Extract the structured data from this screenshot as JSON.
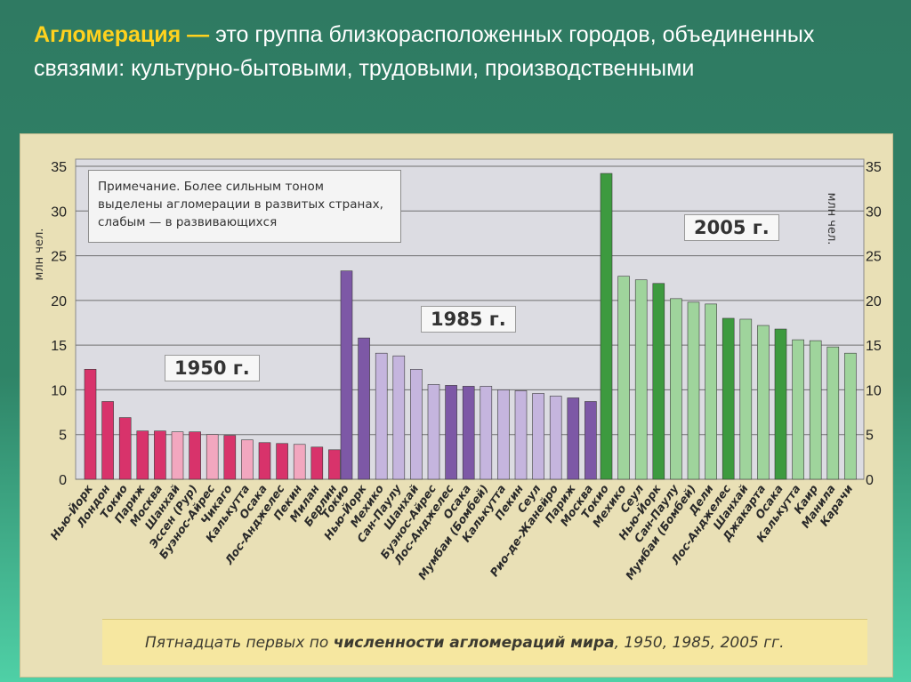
{
  "slide": {
    "title_term": "Агломерация —",
    "title_rest": " это группа близкорасположенных городов, объединенных связями: культурно-бытовыми, трудовыми, производственными"
  },
  "chart_data": {
    "type": "bar",
    "title": "Пятнадцать первых по численности агломераций мира, 1950, 1985, 2005 гг.",
    "caption_plain": "Пятнадцать первых по ",
    "caption_bold": "численности агломераций мира",
    "caption_tail": ", 1950, 1985, 2005 гг.",
    "ylabel": "млн чел.",
    "ylim": [
      0,
      35
    ],
    "yticks": [
      0,
      5,
      10,
      15,
      20,
      25,
      30,
      35
    ],
    "note": [
      "Примечание. Более сильным тоном",
      "выделены агломерации в развитых странах,",
      "слабым — в развивающихся"
    ],
    "grid": true,
    "groups": [
      {
        "name": "1950 г.",
        "color_strong": "#d8336b",
        "color_weak": "#f2a7bf",
        "categories": [
          "Нью-Йорк",
          "Лондон",
          "Токио",
          "Париж",
          "Москва",
          "Шанхай",
          "Эссен (Рур)",
          "Буэнос-Айрес",
          "Чикаго",
          "Калькутта",
          "Осака",
          "Лос-Анджелес",
          "Пекин",
          "Милан",
          "Берлин"
        ],
        "values": [
          12.3,
          8.7,
          6.9,
          5.4,
          5.4,
          5.3,
          5.3,
          5.0,
          4.9,
          4.4,
          4.1,
          4.0,
          3.9,
          3.6,
          3.3
        ],
        "developed": [
          true,
          true,
          true,
          true,
          true,
          false,
          true,
          false,
          true,
          false,
          true,
          true,
          false,
          true,
          true
        ]
      },
      {
        "name": "1985 г.",
        "color_strong": "#7d58a6",
        "color_weak": "#c5b5de",
        "categories": [
          "Токио",
          "Нью-Йорк",
          "Мехико",
          "Сан-Паулу",
          "Шанхай",
          "Буэнос-Айрес",
          "Лос-Анджелес",
          "Осака",
          "Мумбаи (Бомбей)",
          "Калькутта",
          "Пекин",
          "Сеул",
          "Рио-де-Жанейро",
          "Париж",
          "Москва"
        ],
        "values": [
          23.3,
          15.8,
          14.1,
          13.8,
          12.3,
          10.6,
          10.5,
          10.4,
          10.4,
          10.0,
          9.9,
          9.6,
          9.3,
          9.1,
          8.7
        ],
        "developed": [
          true,
          true,
          false,
          false,
          false,
          false,
          true,
          true,
          false,
          false,
          false,
          false,
          false,
          true,
          true
        ]
      },
      {
        "name": "2005 г.",
        "color_strong": "#3d9a3f",
        "color_weak": "#9fd49c",
        "categories": [
          "Токио",
          "Мехико",
          "Сеул",
          "Нью-Йорк",
          "Сан-Паулу",
          "Мумбаи (Бомбей)",
          "Дели",
          "Лос-Анджелес",
          "Шанхай",
          "Джакарта",
          "Осака",
          "Калькутта",
          "Каир",
          "Манила",
          "Карачи"
        ],
        "values": [
          34.2,
          22.7,
          22.3,
          21.9,
          20.2,
          19.8,
          19.6,
          18.0,
          17.9,
          17.2,
          16.8,
          15.6,
          15.5,
          14.8,
          14.1
        ],
        "developed": [
          true,
          false,
          false,
          true,
          false,
          false,
          false,
          true,
          false,
          false,
          true,
          false,
          false,
          false,
          false
        ]
      }
    ]
  }
}
